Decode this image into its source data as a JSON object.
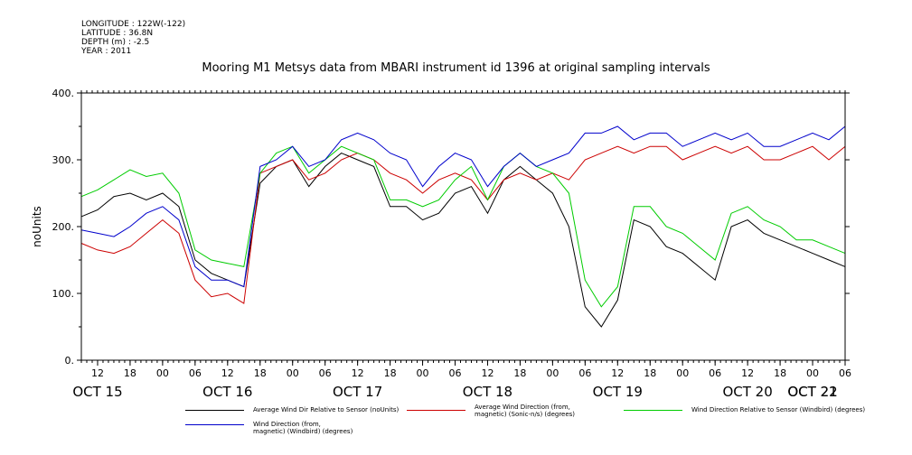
{
  "metadata": {
    "longitude": "LONGITUDE : 122W(-122)",
    "latitude": "LATITUDE : 36.8N",
    "depth": "DEPTH (m) : -2.5",
    "year": "YEAR : 2011"
  },
  "chart_data": {
    "type": "line",
    "title": "Mooring M1 Metsys data from MBARI instrument id 1396 at original sampling intervals",
    "ylabel": "noUnits",
    "ylim": [
      0,
      400
    ],
    "yticks": [
      "0.",
      "100.",
      "200.",
      "300.",
      "400."
    ],
    "xlim": [
      9,
      150
    ],
    "x_hour_ticks": [
      {
        "x": 12,
        "label": "12"
      },
      {
        "x": 18,
        "label": "18"
      },
      {
        "x": 24,
        "label": "00"
      },
      {
        "x": 30,
        "label": "06"
      },
      {
        "x": 36,
        "label": "12"
      },
      {
        "x": 42,
        "label": "18"
      },
      {
        "x": 48,
        "label": "00"
      },
      {
        "x": 54,
        "label": "06"
      },
      {
        "x": 60,
        "label": "12"
      },
      {
        "x": 66,
        "label": "18"
      },
      {
        "x": 72,
        "label": "00"
      },
      {
        "x": 78,
        "label": "06"
      },
      {
        "x": 84,
        "label": "12"
      },
      {
        "x": 90,
        "label": "18"
      },
      {
        "x": 96,
        "label": "00"
      },
      {
        "x": 102,
        "label": "06"
      },
      {
        "x": 108,
        "label": "12"
      },
      {
        "x": 114,
        "label": "18"
      },
      {
        "x": 120,
        "label": "00"
      },
      {
        "x": 126,
        "label": "06"
      },
      {
        "x": 132,
        "label": "12"
      },
      {
        "x": 138,
        "label": "18"
      },
      {
        "x": 144,
        "label": "00"
      },
      {
        "x": 150,
        "label": "06"
      }
    ],
    "x_day_labels": [
      {
        "x": 12,
        "label": "OCT 15"
      },
      {
        "x": 36,
        "label": "OCT 16"
      },
      {
        "x": 60,
        "label": "OCT 17"
      },
      {
        "x": 84,
        "label": "OCT 18"
      },
      {
        "x": 108,
        "label": "OCT 19"
      },
      {
        "x": 132,
        "label": "OCT 20"
      },
      {
        "x": 156,
        "label": "OCT 21"
      },
      {
        "x": 180,
        "label": "OCT 22"
      }
    ],
    "series": [
      {
        "name": "Average Wind Dir Relative to Sensor (noUnits)",
        "color": "#000000",
        "x": [
          9,
          12,
          15,
          18,
          21,
          24,
          27,
          30,
          33,
          36,
          39,
          42,
          45,
          48,
          51,
          54,
          57,
          60,
          63,
          66,
          69,
          72,
          75,
          78,
          81,
          84,
          87,
          90,
          93,
          96,
          99,
          102,
          105,
          108,
          111,
          114,
          117,
          120,
          123,
          126,
          129,
          132,
          135,
          138,
          141,
          144,
          147,
          150
        ],
        "values": [
          215,
          225,
          245,
          250,
          240,
          250,
          230,
          150,
          130,
          120,
          110,
          265,
          290,
          300,
          260,
          290,
          310,
          300,
          290,
          230,
          230,
          210,
          220,
          250,
          260,
          220,
          270,
          290,
          270,
          250,
          200,
          80,
          50,
          90,
          210,
          200,
          170,
          160,
          140,
          120,
          200,
          210,
          190,
          180,
          170,
          160,
          150,
          140
        ]
      },
      {
        "name": "Average Wind Direction (from, magnetic) (Sonic-n/s) (degrees)",
        "color": "#cc0000",
        "x": [
          9,
          12,
          15,
          18,
          21,
          24,
          27,
          30,
          33,
          36,
          39,
          42,
          45,
          48,
          51,
          54,
          57,
          60,
          63,
          66,
          69,
          72,
          75,
          78,
          81,
          84,
          87,
          90,
          93,
          96,
          99,
          102,
          105,
          108,
          111,
          114,
          117,
          120,
          123,
          126,
          129,
          132,
          135,
          138,
          141,
          144,
          147,
          150
        ],
        "values": [
          175,
          165,
          160,
          170,
          190,
          210,
          190,
          120,
          95,
          100,
          85,
          280,
          290,
          300,
          270,
          280,
          300,
          310,
          300,
          280,
          270,
          250,
          270,
          280,
          270,
          240,
          270,
          280,
          270,
          280,
          270,
          300,
          310,
          320,
          310,
          320,
          320,
          300,
          310,
          320,
          310,
          320,
          300,
          300,
          310,
          320,
          300,
          320
        ]
      },
      {
        "name": "Wind Direction Relative to Sensor (Windbird) (degrees)",
        "color": "#00cc00",
        "x": [
          9,
          12,
          15,
          18,
          21,
          24,
          27,
          30,
          33,
          36,
          39,
          42,
          45,
          48,
          51,
          54,
          57,
          60,
          63,
          66,
          69,
          72,
          75,
          78,
          81,
          84,
          87,
          90,
          93,
          96,
          99,
          102,
          105,
          108,
          111,
          114,
          117,
          120,
          123,
          126,
          129,
          132,
          135,
          138,
          141,
          144,
          147,
          150
        ],
        "values": [
          245,
          255,
          270,
          285,
          275,
          280,
          250,
          165,
          150,
          145,
          140,
          280,
          310,
          320,
          280,
          300,
          320,
          310,
          300,
          240,
          240,
          230,
          240,
          270,
          290,
          240,
          290,
          310,
          290,
          280,
          250,
          120,
          80,
          110,
          230,
          230,
          200,
          190,
          170,
          150,
          220,
          230,
          210,
          200,
          180,
          180,
          170,
          160
        ]
      },
      {
        "name": "Wind Direction (from, magnetic) (Windbird) (degrees)",
        "color": "#0000cc",
        "x": [
          9,
          12,
          15,
          18,
          21,
          24,
          27,
          30,
          33,
          36,
          39,
          42,
          45,
          48,
          51,
          54,
          57,
          60,
          63,
          66,
          69,
          72,
          75,
          78,
          81,
          84,
          87,
          90,
          93,
          96,
          99,
          102,
          105,
          108,
          111,
          114,
          117,
          120,
          123,
          126,
          129,
          132,
          135,
          138,
          141,
          144,
          147,
          150
        ],
        "values": [
          195,
          190,
          185,
          200,
          220,
          230,
          210,
          140,
          120,
          120,
          110,
          290,
          300,
          320,
          290,
          300,
          330,
          340,
          330,
          310,
          300,
          260,
          290,
          310,
          300,
          260,
          290,
          310,
          290,
          300,
          310,
          340,
          340,
          350,
          330,
          340,
          340,
          320,
          330,
          340,
          330,
          340,
          320,
          320,
          330,
          340,
          330,
          350
        ]
      }
    ]
  },
  "legend": [
    {
      "label": "Average Wind Dir Relative to Sensor (noUnits)",
      "color": "#000000"
    },
    {
      "label": "Average Wind Direction (from,\nmagnetic) (Sonic-n/s) (degrees)",
      "color": "#cc0000"
    },
    {
      "label": "Wind Direction Relative to Sensor (Windbird) (degrees)",
      "color": "#00cc00"
    },
    {
      "label": "Wind Direction (from,\nmagnetic) (Windbird) (degrees)",
      "color": "#0000cc"
    }
  ]
}
